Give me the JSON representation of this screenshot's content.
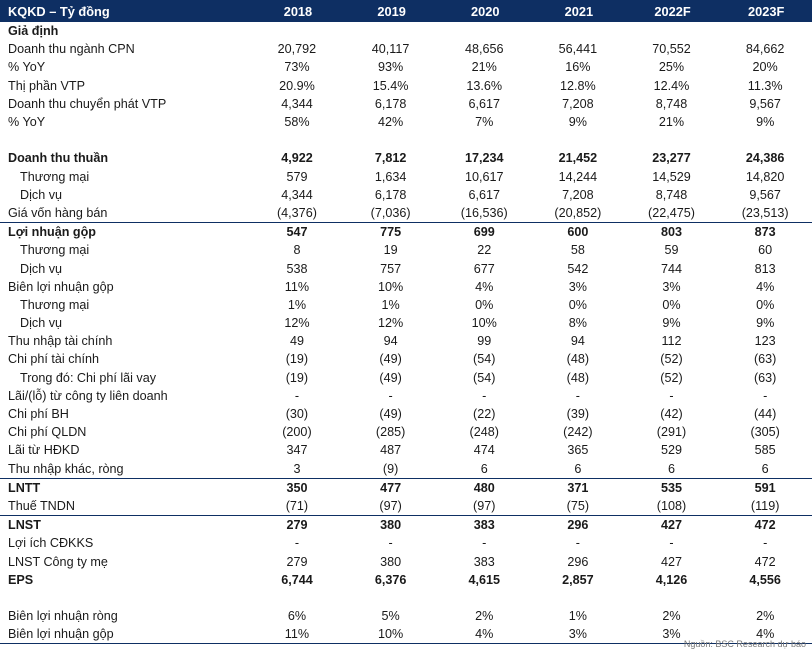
{
  "table": {
    "title": "KQKD – Tỷ đồng",
    "columns": [
      "2018",
      "2019",
      "2020",
      "2021",
      "2022F",
      "2023F"
    ],
    "rows": [
      {
        "label": "Giả định",
        "bold": true,
        "values": [
          "",
          "",
          "",
          "",
          "",
          ""
        ]
      },
      {
        "label": "Doanh thu ngành CPN",
        "values": [
          "20,792",
          "40,117",
          "48,656",
          "56,441",
          "70,552",
          "84,662"
        ]
      },
      {
        "label": "% YoY",
        "values": [
          "73%",
          "93%",
          "21%",
          "16%",
          "25%",
          "20%"
        ]
      },
      {
        "label": "Thị phần VTP",
        "values": [
          "20.9%",
          "15.4%",
          "13.6%",
          "12.8%",
          "12.4%",
          "11.3%"
        ]
      },
      {
        "label": "Doanh thu chuyển phát  VTP",
        "values": [
          "4,344",
          "6,178",
          "6,617",
          "7,208",
          "8,748",
          "9,567"
        ]
      },
      {
        "label": "% YoY",
        "values": [
          "58%",
          "42%",
          "7%",
          "9%",
          "21%",
          "9%"
        ]
      },
      {
        "label": "",
        "gap": true,
        "values": [
          "",
          "",
          "",
          "",
          "",
          ""
        ]
      },
      {
        "label": "Doanh thu thuần",
        "bold": true,
        "values": [
          "4,922",
          "7,812",
          "17,234",
          "21,452",
          "23,277",
          "24,386"
        ]
      },
      {
        "label": "Thương mại",
        "indent": 1,
        "values": [
          "579",
          "1,634",
          "10,617",
          "14,244",
          "14,529",
          "14,820"
        ]
      },
      {
        "label": "Dịch vụ",
        "indent": 1,
        "values": [
          "4,344",
          "6,178",
          "6,617",
          "7,208",
          "8,748",
          "9,567"
        ]
      },
      {
        "label": "Giá vốn hàng bán",
        "values": [
          "(4,376)",
          "(7,036)",
          "(16,536)",
          "(20,852)",
          "(22,475)",
          "(23,513)"
        ]
      },
      {
        "label": "Lợi nhuận gộp",
        "bold": true,
        "border": true,
        "values": [
          "547",
          "775",
          "699",
          "600",
          "803",
          "873"
        ]
      },
      {
        "label": "Thương mại",
        "indent": 1,
        "values": [
          "8",
          "19",
          "22",
          "58",
          "59",
          "60"
        ]
      },
      {
        "label": "Dịch vụ",
        "indent": 1,
        "values": [
          "538",
          "757",
          "677",
          "542",
          "744",
          "813"
        ]
      },
      {
        "label": "Biên lợi nhuận gộp",
        "values": [
          "11%",
          "10%",
          "4%",
          "3%",
          "3%",
          "4%"
        ]
      },
      {
        "label": "Thương mại",
        "indent": 1,
        "values": [
          "1%",
          "1%",
          "0%",
          "0%",
          "0%",
          "0%"
        ]
      },
      {
        "label": "Dịch vụ",
        "indent": 1,
        "values": [
          "12%",
          "12%",
          "10%",
          "8%",
          "9%",
          "9%"
        ]
      },
      {
        "label": "Thu nhập tài chính",
        "values": [
          "49",
          "94",
          "99",
          "94",
          "112",
          "123"
        ]
      },
      {
        "label": "Chi phí tài chính",
        "values": [
          "(19)",
          "(49)",
          "(54)",
          "(48)",
          "(52)",
          "(63)"
        ]
      },
      {
        "label": "Trong đó: Chi phí lãi vay",
        "indent": 1,
        "values": [
          "(19)",
          "(49)",
          "(54)",
          "(48)",
          "(52)",
          "(63)"
        ]
      },
      {
        "label": "Lãi/(lỗ) từ công ty liên doanh",
        "values": [
          "-",
          "-",
          "-",
          "-",
          "-",
          "-"
        ]
      },
      {
        "label": "Chi phí BH",
        "values": [
          "(30)",
          "(49)",
          "(22)",
          "(39)",
          "(42)",
          "(44)"
        ]
      },
      {
        "label": "Chi phí QLDN",
        "values": [
          "(200)",
          "(285)",
          "(248)",
          "(242)",
          "(291)",
          "(305)"
        ]
      },
      {
        "label": "Lãi từ HĐKD",
        "values": [
          "347",
          "487",
          "474",
          "365",
          "529",
          "585"
        ]
      },
      {
        "label": "Thu nhập khác, ròng",
        "values": [
          "3",
          "(9)",
          "6",
          "6",
          "6",
          "6"
        ]
      },
      {
        "label": "LNTT",
        "bold": true,
        "border": true,
        "values": [
          "350",
          "477",
          "480",
          "371",
          "535",
          "591"
        ]
      },
      {
        "label": "Thuế TNDN",
        "values": [
          "(71)",
          "(97)",
          "(97)",
          "(75)",
          "(108)",
          "(119)"
        ]
      },
      {
        "label": "LNST",
        "bold": true,
        "border": true,
        "values": [
          "279",
          "380",
          "383",
          "296",
          "427",
          "472"
        ]
      },
      {
        "label": "Lợi ích CĐKKS",
        "values": [
          "-",
          "-",
          "-",
          "-",
          "-",
          "-"
        ]
      },
      {
        "label": "LNST Công ty mẹ",
        "values": [
          "279",
          "380",
          "383",
          "296",
          "427",
          "472"
        ]
      },
      {
        "label": "EPS",
        "bold": true,
        "values": [
          "6,744",
          "6,376",
          "4,615",
          "2,857",
          "4,126",
          "4,556"
        ]
      },
      {
        "label": "",
        "gap": true,
        "values": [
          "",
          "",
          "",
          "",
          "",
          ""
        ]
      },
      {
        "label": "Biên lợi nhuận ròng",
        "values": [
          "6%",
          "5%",
          "2%",
          "1%",
          "2%",
          "2%"
        ]
      },
      {
        "label": "Biên lợi nhuận gộp",
        "last": true,
        "values": [
          "11%",
          "10%",
          "4%",
          "3%",
          "3%",
          "4%"
        ]
      }
    ]
  },
  "source": "Nguồn: BSC Research dự báo"
}
